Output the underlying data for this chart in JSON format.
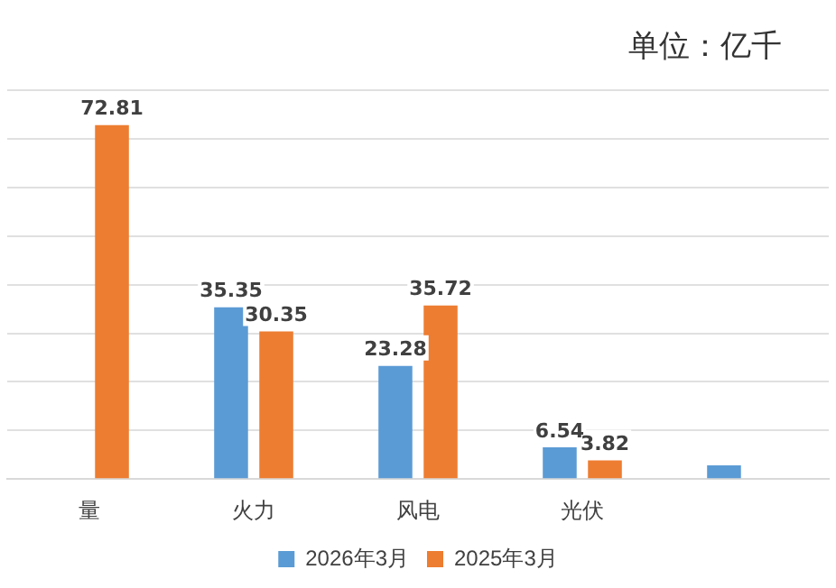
{
  "chart_data": {
    "type": "bar",
    "annotations": [
      "单位：亿千"
    ],
    "categories": [
      "量",
      "火力",
      "风电",
      "光伏",
      null
    ],
    "series": [
      {
        "name": "2026年3月",
        "color": "#5b9bd5",
        "values": [
          null,
          35.35,
          23.28,
          6.54,
          2.8
        ],
        "value_labels": [
          null,
          "35.35",
          "23.28",
          "6.54",
          null
        ]
      },
      {
        "name": "2025年3月",
        "color": "#ed7d31",
        "values": [
          72.81,
          30.35,
          35.72,
          3.82,
          null
        ],
        "value_labels": [
          "72.81",
          "30.35",
          "35.72",
          "3.82",
          null
        ]
      }
    ],
    "ylim": [
      0,
      80
    ],
    "yticks": [
      0,
      10,
      20,
      30,
      40,
      50,
      60,
      70,
      80
    ],
    "grid": "y",
    "tick_labels": "x",
    "legend": "bottom"
  }
}
